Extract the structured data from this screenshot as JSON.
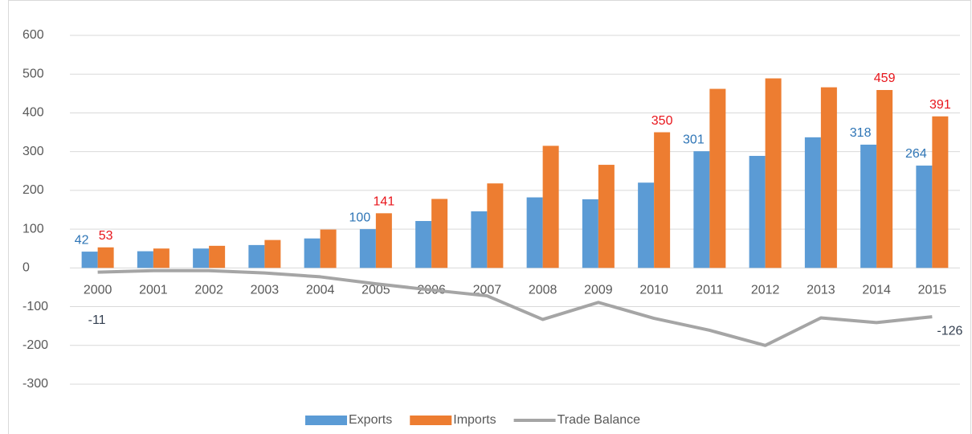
{
  "chart_data": {
    "type": "bar-line",
    "categories": [
      "2000",
      "2001",
      "2002",
      "2003",
      "2004",
      "2005",
      "2006",
      "2007",
      "2008",
      "2009",
      "2010",
      "2011",
      "2012",
      "2013",
      "2014",
      "2015"
    ],
    "series": [
      {
        "name": "Exports",
        "type": "bar",
        "color": "#5b9bd5",
        "label_color": "#2e75b6",
        "values": [
          42,
          43,
          50,
          59,
          76,
          100,
          121,
          146,
          182,
          177,
          220,
          301,
          289,
          337,
          318,
          264
        ],
        "labeled_indices": [
          0,
          5,
          11,
          14,
          15
        ]
      },
      {
        "name": "Imports",
        "type": "bar",
        "color": "#ed7d31",
        "label_color": "#e8151b",
        "values": [
          53,
          50,
          57,
          72,
          99,
          141,
          178,
          218,
          315,
          266,
          350,
          462,
          489,
          466,
          459,
          391
        ],
        "labeled_indices": [
          0,
          5,
          10,
          14,
          15
        ]
      },
      {
        "name": "Trade Balance",
        "type": "line",
        "color": "#a5a5a5",
        "label_color": "#333f50",
        "values": [
          -11,
          -7,
          -7,
          -13,
          -23,
          -41,
          -57,
          -72,
          -133,
          -89,
          -130,
          -161,
          -200,
          -129,
          -141,
          -126
        ],
        "labeled_indices": [
          0,
          15
        ]
      }
    ],
    "ylim": [
      -300,
      600
    ],
    "yticks": [
      -300,
      -200,
      -100,
      0,
      100,
      200,
      300,
      400,
      500,
      600
    ],
    "grid": true,
    "legend": "bottom"
  }
}
